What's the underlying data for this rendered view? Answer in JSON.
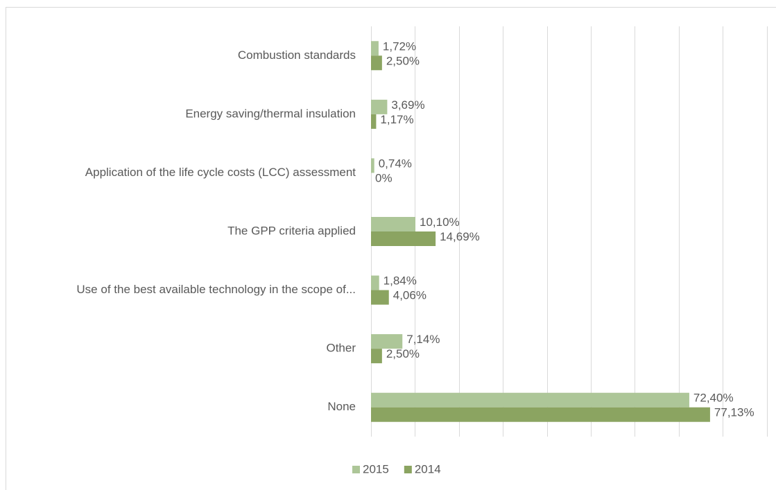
{
  "chart_data": {
    "type": "bar",
    "orientation": "horizontal",
    "categories": [
      "Combustion standards",
      "Energy saving/thermal insulation",
      "Application of the life cycle costs (LCC) assessment",
      "The GPP criteria applied",
      "Use of the best available technology in the scope of...",
      "Other",
      "None"
    ],
    "series": [
      {
        "name": "2015",
        "color": "#adc698",
        "values": [
          1.72,
          3.69,
          0.74,
          10.1,
          1.84,
          7.14,
          72.4
        ],
        "value_labels": [
          "1,72%",
          "3,69%",
          "0,74%",
          "10,10%",
          "1,84%",
          "7,14%",
          "72,40%"
        ]
      },
      {
        "name": "2014",
        "color": "#8ba461",
        "values": [
          2.5,
          1.17,
          0,
          14.69,
          4.06,
          2.5,
          77.13
        ],
        "value_labels": [
          "2,50%",
          "1,17%",
          "0%",
          "14,69%",
          "4,06%",
          "2,50%",
          "77,13%"
        ]
      }
    ],
    "xlim": [
      0,
      90
    ],
    "xticks": [
      0,
      10,
      20,
      30,
      40,
      50,
      60,
      70,
      80,
      90
    ],
    "grid": true,
    "legend": "bottom"
  }
}
